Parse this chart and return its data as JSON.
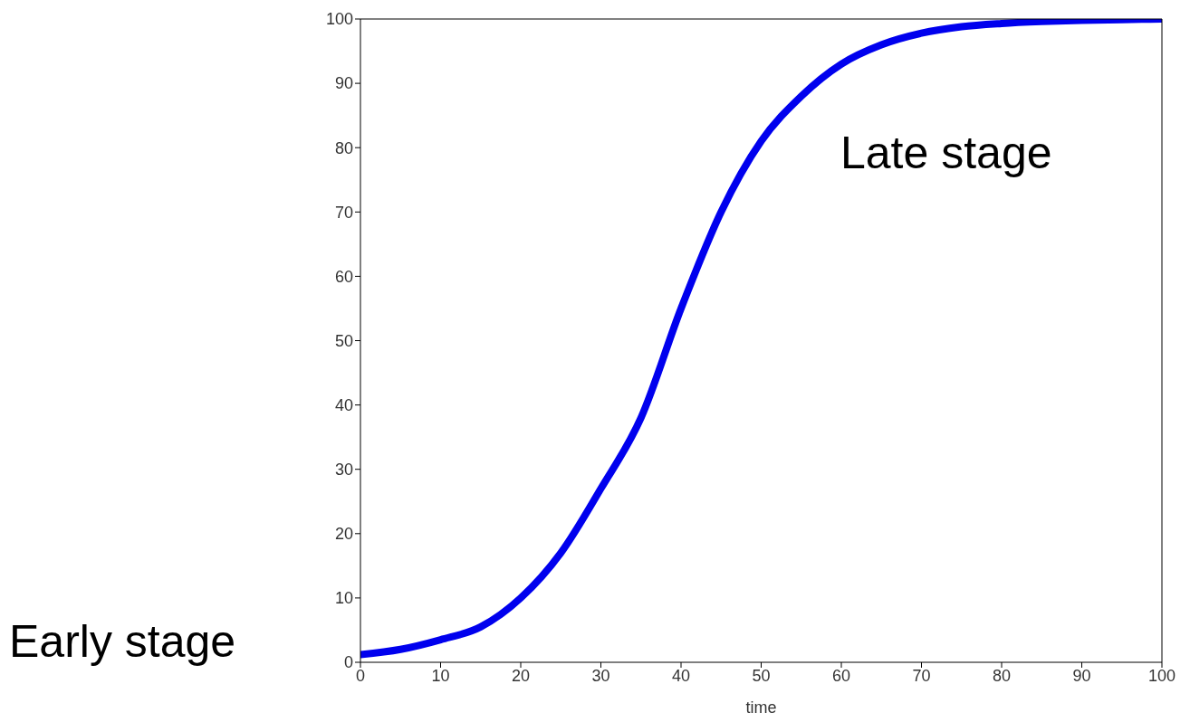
{
  "chart_data": {
    "type": "line",
    "xlabel": "time",
    "x": [
      0,
      5,
      10,
      15,
      20,
      25,
      30,
      35,
      40,
      45,
      50,
      55,
      60,
      65,
      70,
      75,
      80,
      85,
      90,
      95,
      100
    ],
    "series": [
      {
        "color": "#0000ee",
        "values": [
          1.2,
          2,
          3.5,
          5.5,
          10,
          17,
          27,
          38,
          55,
          70,
          81,
          88,
          93,
          96,
          97.8,
          98.8,
          99.3,
          99.6,
          99.8,
          99.9,
          100
        ]
      }
    ],
    "xlim": [
      0,
      100
    ],
    "xticks": [
      0,
      10,
      20,
      30,
      40,
      50,
      60,
      70,
      80,
      90,
      100
    ],
    "ylim": [
      0,
      100
    ],
    "yticks": [
      0,
      10,
      20,
      30,
      40,
      50,
      60,
      70,
      80,
      90,
      100
    ],
    "grid": false,
    "legend": false,
    "marker": "none",
    "line_style": "solid",
    "annotations": [
      "Early stage",
      "Late stage"
    ]
  }
}
